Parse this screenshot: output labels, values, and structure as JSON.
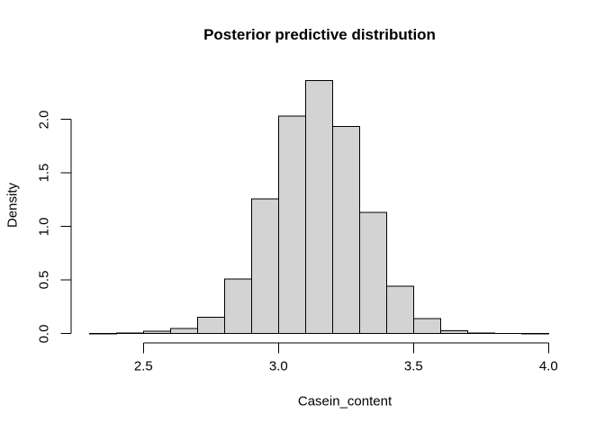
{
  "window": {
    "background": "#ffffff"
  },
  "chart_data": {
    "type": "bar",
    "subtype": "histogram",
    "title": "Posterior predictive distribution",
    "xlabel": "Casein_content",
    "ylabel": "Density",
    "grid": false,
    "legend": false,
    "xlim": [
      2.23,
      4.07
    ],
    "ylim": [
      0,
      2.37
    ],
    "bin_width": 0.1,
    "bins": [
      {
        "from": 2.3,
        "to": 2.4,
        "density": 0.002
      },
      {
        "from": 2.4,
        "to": 2.5,
        "density": 0.004
      },
      {
        "from": 2.5,
        "to": 2.6,
        "density": 0.022
      },
      {
        "from": 2.6,
        "to": 2.7,
        "density": 0.048
      },
      {
        "from": 2.7,
        "to": 2.8,
        "density": 0.155
      },
      {
        "from": 2.8,
        "to": 2.9,
        "density": 0.51
      },
      {
        "from": 2.9,
        "to": 3.0,
        "density": 1.26
      },
      {
        "from": 3.0,
        "to": 3.1,
        "density": 2.03
      },
      {
        "from": 3.1,
        "to": 3.2,
        "density": 2.365
      },
      {
        "from": 3.2,
        "to": 3.3,
        "density": 1.935
      },
      {
        "from": 3.3,
        "to": 3.4,
        "density": 1.13
      },
      {
        "from": 3.4,
        "to": 3.5,
        "density": 0.445
      },
      {
        "from": 3.5,
        "to": 3.6,
        "density": 0.14
      },
      {
        "from": 3.6,
        "to": 3.7,
        "density": 0.025
      },
      {
        "from": 3.7,
        "to": 3.8,
        "density": 0.004
      },
      {
        "from": 3.8,
        "to": 3.9,
        "density": 0.003
      },
      {
        "from": 3.9,
        "to": 4.0,
        "density": 0.002
      }
    ],
    "x_ticks": [
      {
        "value": 2.5,
        "label": "2.5"
      },
      {
        "value": 3.0,
        "label": "3.0"
      },
      {
        "value": 3.5,
        "label": "3.5"
      },
      {
        "value": 4.0,
        "label": "4.0"
      }
    ],
    "y_ticks": [
      {
        "value": 0.0,
        "label": "0.0"
      },
      {
        "value": 0.5,
        "label": "0.5"
      },
      {
        "value": 1.0,
        "label": "1.0"
      },
      {
        "value": 1.5,
        "label": "1.5"
      },
      {
        "value": 2.0,
        "label": "2.0"
      }
    ],
    "colors": {
      "bar_fill": "#d3d3d3",
      "bar_border": "#000000",
      "axis": "#000000",
      "text": "#000000",
      "background": "#ffffff"
    }
  }
}
